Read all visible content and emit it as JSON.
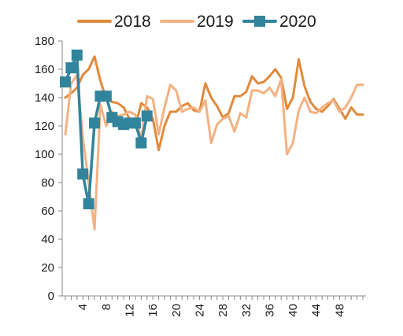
{
  "chart_data": {
    "type": "line",
    "title": "",
    "xlabel": "",
    "ylabel": "",
    "ylim": [
      0,
      180
    ],
    "yticks": [
      0,
      20,
      40,
      60,
      80,
      100,
      120,
      140,
      160,
      180
    ],
    "xlim": [
      1,
      52
    ],
    "xticks": [
      4,
      8,
      12,
      16,
      20,
      24,
      28,
      32,
      36,
      40,
      44,
      48
    ],
    "grid": false,
    "legend_position": "top",
    "series": [
      {
        "name": "2018",
        "color": "#e08a3c",
        "marker": "none",
        "x": [
          1,
          2,
          3,
          4,
          5,
          6,
          7,
          8,
          9,
          10,
          11,
          12,
          13,
          14,
          15,
          16,
          17,
          18,
          19,
          20,
          21,
          22,
          23,
          24,
          25,
          26,
          27,
          28,
          29,
          30,
          31,
          32,
          33,
          34,
          35,
          36,
          37,
          38,
          39,
          40,
          41,
          42,
          43,
          44,
          45,
          46,
          47,
          48,
          49,
          50,
          51,
          52
        ],
        "values": [
          140,
          143,
          147,
          156,
          160,
          169,
          152,
          139,
          137,
          136,
          133,
          125,
          120,
          136,
          133,
          125,
          103,
          120,
          130,
          130,
          134,
          136,
          131,
          130,
          150,
          140,
          134,
          126,
          129,
          141,
          141,
          144,
          155,
          150,
          151,
          155,
          160,
          154,
          132,
          140,
          167,
          148,
          137,
          132,
          130,
          134,
          139,
          132,
          125,
          133,
          128,
          128
        ]
      },
      {
        "name": "2019",
        "color": "#f4b183",
        "marker": "none",
        "x": [
          1,
          2,
          3,
          4,
          5,
          6,
          7,
          8,
          9,
          10,
          11,
          12,
          13,
          14,
          15,
          16,
          17,
          18,
          19,
          20,
          21,
          22,
          23,
          24,
          25,
          26,
          27,
          28,
          29,
          30,
          31,
          32,
          33,
          34,
          35,
          36,
          37,
          38,
          39,
          40,
          41,
          42,
          43,
          44,
          45,
          46,
          47,
          48,
          49,
          50,
          51,
          52
        ],
        "values": [
          114,
          150,
          156,
          112,
          80,
          47,
          135,
          120,
          130,
          127,
          128,
          130,
          128,
          110,
          141,
          139,
          114,
          133,
          149,
          145,
          130,
          132,
          133,
          130,
          138,
          108,
          121,
          125,
          127,
          116,
          129,
          126,
          145,
          145,
          143,
          147,
          141,
          153,
          100,
          108,
          131,
          140,
          130,
          129,
          133,
          136,
          138,
          130,
          133,
          140,
          149,
          149
        ]
      },
      {
        "name": "2020",
        "color": "#31849b",
        "marker": "square",
        "x": [
          1,
          2,
          3,
          4,
          5,
          6,
          7,
          8,
          9,
          10,
          11,
          12,
          13,
          14,
          15
        ],
        "values": [
          151,
          161,
          170,
          86,
          65,
          122,
          141,
          141,
          126,
          123,
          121,
          122,
          122,
          108,
          127
        ]
      }
    ]
  }
}
